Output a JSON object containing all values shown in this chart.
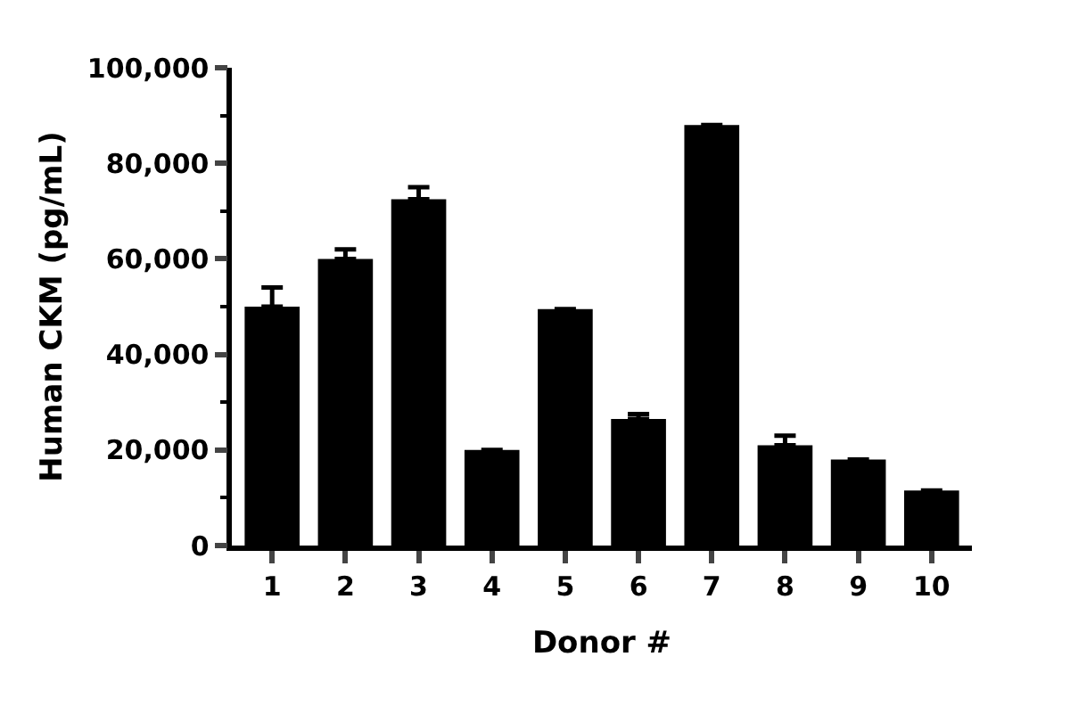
{
  "chart_data": {
    "type": "bar",
    "xlabel": "Donor #",
    "ylabel": "Human CKM (pg/mL)",
    "categories": [
      "1",
      "2",
      "3",
      "4",
      "5",
      "6",
      "7",
      "8",
      "9",
      "10"
    ],
    "values": [
      50000,
      60000,
      72500,
      20000,
      49500,
      26500,
      88000,
      21000,
      18000,
      11500
    ],
    "errors": [
      [
        50000,
        54000
      ],
      [
        60000,
        62000
      ],
      [
        72500,
        75000
      ],
      null,
      null,
      [
        26500,
        27500
      ],
      null,
      [
        21000,
        23000
      ],
      null,
      null
    ],
    "color": "#000000",
    "ylim": [
      0,
      100000
    ],
    "yticks": [
      {
        "value": 0,
        "label": "0"
      },
      {
        "value": 10000,
        "label": null
      },
      {
        "value": 20000,
        "label": "20,000"
      },
      {
        "value": 30000,
        "label": null
      },
      {
        "value": 40000,
        "label": "40,000"
      },
      {
        "value": 50000,
        "label": null
      },
      {
        "value": 60000,
        "label": "60,000"
      },
      {
        "value": 70000,
        "label": null
      },
      {
        "value": 80000,
        "label": "80,000"
      },
      {
        "value": 90000,
        "label": null
      },
      {
        "value": 100000,
        "label": "100,000"
      }
    ],
    "grid": false,
    "legend": false
  }
}
